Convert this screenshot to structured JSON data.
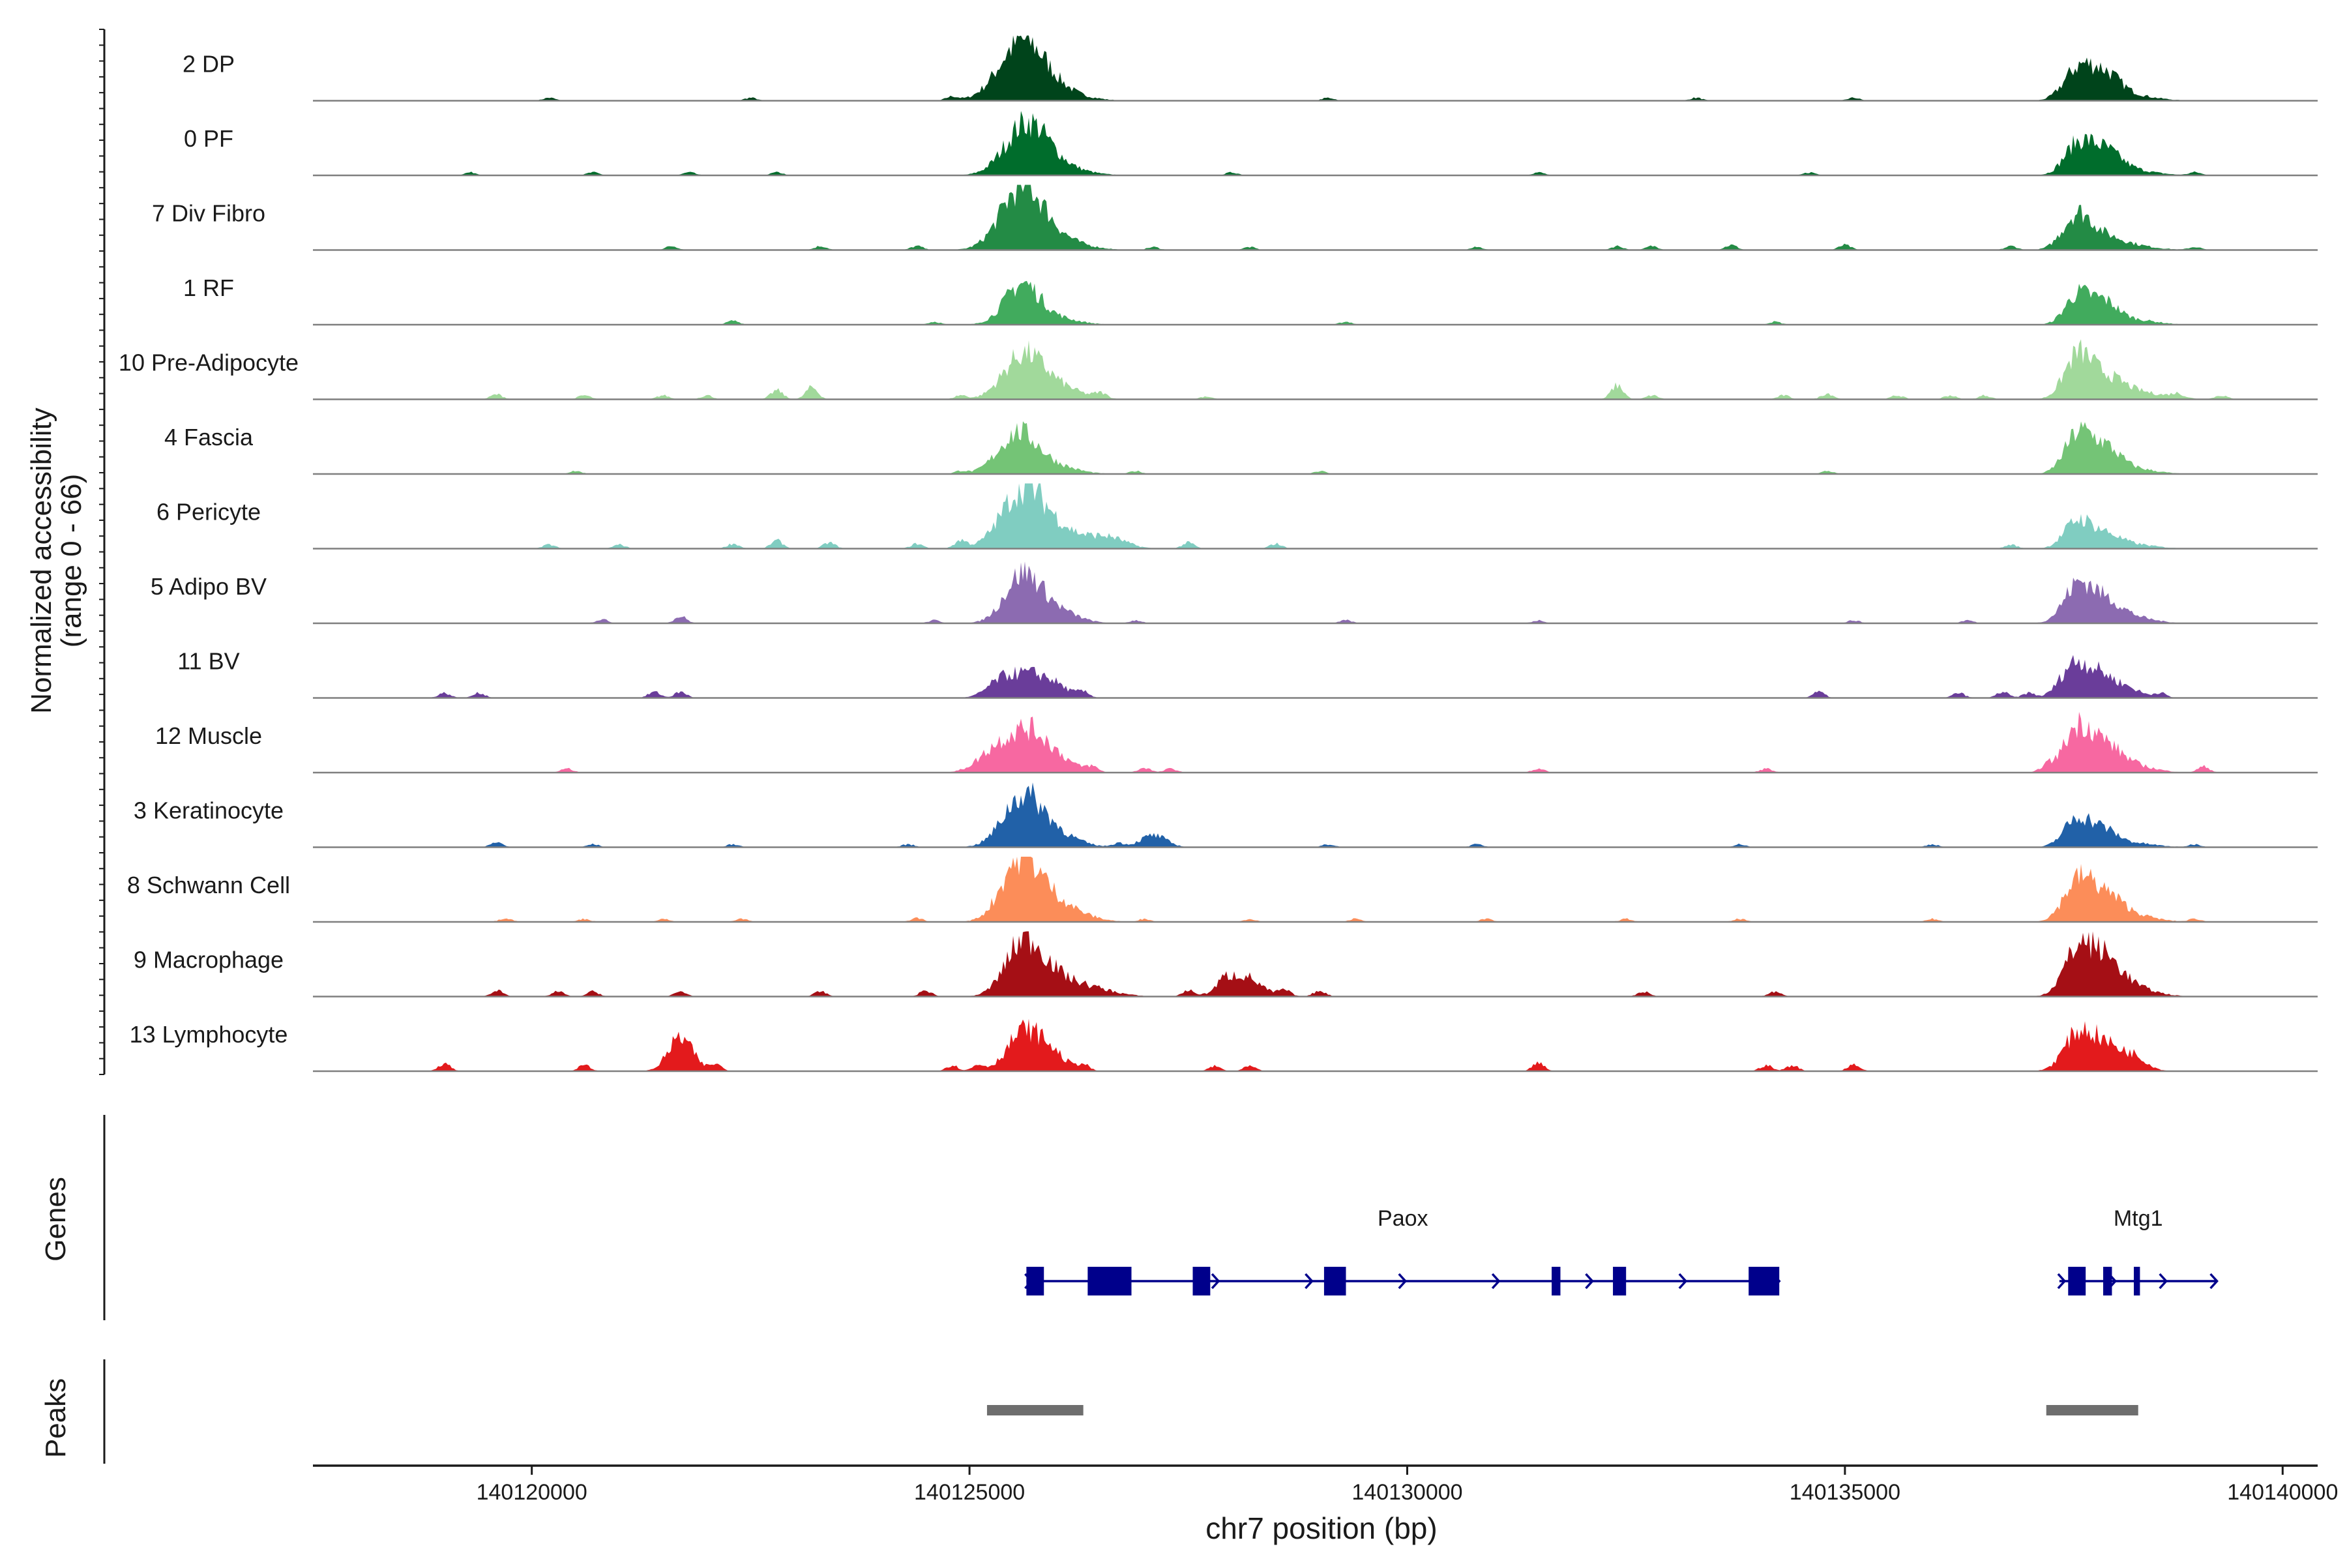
{
  "chart_data": {
    "type": "area",
    "chromosome": "chr7",
    "xlabel": "chr7 position (bp)",
    "ylabel": "Normalized accessibility",
    "ylabel_range": "(range 0 - 66)",
    "xlim": [
      140117500,
      140140400
    ],
    "ylim": [
      0,
      66
    ],
    "x_ticks": [
      140120000,
      140125000,
      140130000,
      140135000,
      140140000
    ],
    "x_tick_labels": [
      "140120000",
      "140125000",
      "140130000",
      "140135000",
      "140140000"
    ],
    "tracks": [
      {
        "name": "2 DP",
        "color": "#00441b",
        "peaks": [
          [
            140125600,
            260,
            58
          ],
          [
            140126000,
            300,
            8
          ],
          [
            140137650,
            160,
            28
          ],
          [
            140137950,
            180,
            24
          ],
          [
            140138200,
            300,
            6
          ]
        ],
        "minor": [
          [
            140120200,
            3
          ],
          [
            140122500,
            3
          ],
          [
            140124800,
            4
          ],
          [
            140129100,
            3
          ],
          [
            140133300,
            3
          ],
          [
            140135100,
            3
          ]
        ]
      },
      {
        "name": "0 PF",
        "color": "#006d2c",
        "peaks": [
          [
            140125650,
            240,
            50
          ],
          [
            140126000,
            300,
            8
          ],
          [
            140137650,
            150,
            28
          ],
          [
            140137950,
            180,
            22
          ],
          [
            140138200,
            300,
            6
          ]
        ],
        "minor": [
          [
            140119300,
            3
          ],
          [
            140120700,
            3
          ],
          [
            140121800,
            3
          ],
          [
            140122800,
            3
          ],
          [
            140128000,
            3
          ],
          [
            140131500,
            3
          ],
          [
            140134600,
            3
          ],
          [
            140139000,
            3
          ]
        ]
      },
      {
        "name": "7 Div Fibro",
        "color": "#238b45",
        "peaks": [
          [
            140125600,
            240,
            62
          ],
          [
            140126000,
            300,
            10
          ],
          [
            140137650,
            160,
            34
          ],
          [
            140137950,
            200,
            10
          ],
          [
            140138200,
            300,
            5
          ]
        ],
        "minor": [
          [
            140121600,
            4
          ],
          [
            140123300,
            4
          ],
          [
            140124400,
            4
          ],
          [
            140127100,
            3
          ],
          [
            140128200,
            3
          ],
          [
            140130800,
            3
          ],
          [
            140132400,
            4
          ],
          [
            140132800,
            4
          ],
          [
            140133700,
            5
          ],
          [
            140135000,
            5
          ],
          [
            140136900,
            4
          ],
          [
            140139000,
            3
          ]
        ]
      },
      {
        "name": "1 RF",
        "color": "#41ab5d",
        "peaks": [
          [
            140125600,
            200,
            40
          ],
          [
            140126000,
            250,
            6
          ],
          [
            140137650,
            140,
            28
          ],
          [
            140137950,
            160,
            22
          ],
          [
            140138300,
            250,
            5
          ]
        ],
        "minor": [
          [
            140122300,
            4
          ],
          [
            140124600,
            3
          ],
          [
            140129300,
            3
          ],
          [
            140134200,
            3
          ]
        ]
      },
      {
        "name": "10 Pre-Adipocyte",
        "color": "#a1d99b",
        "peaks": [
          [
            140125600,
            220,
            40
          ],
          [
            140125950,
            280,
            14
          ],
          [
            140137650,
            150,
            38
          ],
          [
            140137950,
            220,
            22
          ],
          [
            140138400,
            300,
            6
          ]
        ],
        "minor": [
          [
            140119600,
            5
          ],
          [
            140120600,
            4
          ],
          [
            140121500,
            4
          ],
          [
            140122000,
            4
          ],
          [
            140122800,
            9
          ],
          [
            140123200,
            12
          ],
          [
            140124900,
            4
          ],
          [
            140126500,
            5
          ],
          [
            140127700,
            3
          ],
          [
            140132400,
            14
          ],
          [
            140132800,
            4
          ],
          [
            140134300,
            4
          ],
          [
            140134800,
            6
          ],
          [
            140135600,
            4
          ],
          [
            140136200,
            4
          ],
          [
            140136600,
            4
          ],
          [
            140138800,
            4
          ],
          [
            140139300,
            4
          ]
        ]
      },
      {
        "name": "4 Fascia",
        "color": "#74c476",
        "peaks": [
          [
            140125550,
            220,
            40
          ],
          [
            140125950,
            260,
            8
          ],
          [
            140137650,
            150,
            36
          ],
          [
            140137950,
            180,
            26
          ],
          [
            140138300,
            250,
            5
          ]
        ],
        "minor": [
          [
            140120500,
            3
          ],
          [
            140124900,
            3
          ],
          [
            140126900,
            3
          ],
          [
            140129000,
            3
          ],
          [
            140134800,
            3
          ]
        ]
      },
      {
        "name": "6 Pericyte",
        "color": "#80cdc1",
        "peaks": [
          [
            140125600,
            240,
            55
          ],
          [
            140126000,
            300,
            18
          ],
          [
            140126600,
            200,
            10
          ],
          [
            140137650,
            150,
            26
          ],
          [
            140137950,
            180,
            14
          ],
          [
            140138300,
            250,
            4
          ]
        ],
        "minor": [
          [
            140120200,
            4
          ],
          [
            140121000,
            4
          ],
          [
            140122300,
            5
          ],
          [
            140122800,
            8
          ],
          [
            140123400,
            6
          ],
          [
            140124400,
            5
          ],
          [
            140124900,
            8
          ],
          [
            140127500,
            6
          ],
          [
            140128500,
            5
          ],
          [
            140136900,
            4
          ]
        ]
      },
      {
        "name": "5 Adipo BV",
        "color": "#8c6bb1",
        "peaks": [
          [
            140125600,
            200,
            46
          ],
          [
            140125950,
            250,
            14
          ],
          [
            140137650,
            160,
            34
          ],
          [
            140137950,
            200,
            22
          ],
          [
            140138300,
            250,
            5
          ]
        ],
        "minor": [
          [
            140121700,
            7
          ],
          [
            140120800,
            4
          ],
          [
            140124600,
            3
          ],
          [
            140126900,
            3
          ],
          [
            140129300,
            3
          ],
          [
            140131500,
            3
          ],
          [
            140135100,
            3
          ],
          [
            140136400,
            3
          ]
        ]
      },
      {
        "name": "11 BV",
        "color": "#6a3d9a",
        "peaks": [
          [
            140125350,
            160,
            14
          ],
          [
            140125650,
            200,
            20
          ],
          [
            140125950,
            180,
            12
          ],
          [
            140137600,
            150,
            30
          ],
          [
            140137900,
            180,
            24
          ],
          [
            140138250,
            150,
            8
          ]
        ],
        "minor": [
          [
            140119000,
            5
          ],
          [
            140119400,
            5
          ],
          [
            140121400,
            6
          ],
          [
            140121700,
            6
          ],
          [
            140126300,
            5
          ],
          [
            140134700,
            6
          ],
          [
            140136300,
            5
          ],
          [
            140136800,
            6
          ],
          [
            140137100,
            5
          ],
          [
            140138600,
            5
          ]
        ]
      },
      {
        "name": "12 Muscle",
        "color": "#f768a1",
        "peaks": [
          [
            140125300,
            200,
            22
          ],
          [
            140125650,
            200,
            34
          ],
          [
            140125950,
            220,
            16
          ],
          [
            140137650,
            160,
            40
          ],
          [
            140137950,
            200,
            26
          ],
          [
            140138300,
            250,
            6
          ]
        ],
        "minor": [
          [
            140120400,
            4
          ],
          [
            140126400,
            5
          ],
          [
            140127000,
            5
          ],
          [
            140127300,
            4
          ],
          [
            140131500,
            4
          ],
          [
            140134100,
            4
          ],
          [
            140137300,
            6
          ],
          [
            140139100,
            6
          ]
        ]
      },
      {
        "name": "3 Keratinocyte",
        "color": "#2161a8",
        "peaks": [
          [
            140125600,
            220,
            48
          ],
          [
            140125950,
            260,
            14
          ],
          [
            140127100,
            150,
            12
          ],
          [
            140137650,
            150,
            28
          ],
          [
            140137950,
            160,
            16
          ],
          [
            140138300,
            250,
            4
          ]
        ],
        "minor": [
          [
            140119600,
            5
          ],
          [
            140120700,
            3
          ],
          [
            140122300,
            3
          ],
          [
            140124300,
            3
          ],
          [
            140126700,
            4
          ],
          [
            140129100,
            3
          ],
          [
            140130800,
            3
          ],
          [
            140133800,
            3
          ],
          [
            140136000,
            3
          ],
          [
            140139000,
            3
          ]
        ]
      },
      {
        "name": "8 Schwann Cell",
        "color": "#fc8d59",
        "peaks": [
          [
            140125550,
            200,
            48
          ],
          [
            140125800,
            260,
            28
          ],
          [
            140126200,
            250,
            6
          ],
          [
            140137650,
            160,
            36
          ],
          [
            140137950,
            200,
            26
          ],
          [
            140138300,
            250,
            6
          ]
        ],
        "minor": [
          [
            140119700,
            4
          ],
          [
            140120600,
            3
          ],
          [
            140121500,
            3
          ],
          [
            140122400,
            3
          ],
          [
            140124400,
            4
          ],
          [
            140127000,
            3
          ],
          [
            140128200,
            3
          ],
          [
            140129400,
            3
          ],
          [
            140130900,
            3
          ],
          [
            140132500,
            3
          ],
          [
            140133800,
            3
          ],
          [
            140136000,
            3
          ],
          [
            140139000,
            3
          ]
        ]
      },
      {
        "name": "9 Macrophage",
        "color": "#a50f15",
        "peaks": [
          [
            140125600,
            200,
            46
          ],
          [
            140125850,
            240,
            20
          ],
          [
            140126300,
            300,
            10
          ],
          [
            140128100,
            200,
            22
          ],
          [
            140137650,
            160,
            40
          ],
          [
            140137950,
            200,
            36
          ],
          [
            140138300,
            250,
            8
          ]
        ],
        "minor": [
          [
            140119600,
            6
          ],
          [
            140120300,
            5
          ],
          [
            140120700,
            5
          ],
          [
            140121700,
            5
          ],
          [
            140123300,
            5
          ],
          [
            140124500,
            6
          ],
          [
            140127500,
            6
          ],
          [
            140127900,
            6
          ],
          [
            140128600,
            6
          ],
          [
            140129000,
            6
          ],
          [
            140132700,
            5
          ],
          [
            140134200,
            5
          ]
        ]
      },
      {
        "name": "13 Lymphocyte",
        "color": "#e31a1c",
        "peaks": [
          [
            140121700,
            140,
            34
          ],
          [
            140125600,
            180,
            36
          ],
          [
            140125900,
            180,
            20
          ],
          [
            140137650,
            160,
            34
          ],
          [
            140137950,
            180,
            26
          ],
          [
            140138300,
            150,
            14
          ]
        ],
        "minor": [
          [
            140119000,
            8
          ],
          [
            140120600,
            6
          ],
          [
            140122100,
            7
          ],
          [
            140124800,
            6
          ],
          [
            140125100,
            6
          ],
          [
            140126300,
            6
          ],
          [
            140127800,
            5
          ],
          [
            140128200,
            5
          ],
          [
            140131500,
            8
          ],
          [
            140134100,
            6
          ],
          [
            140134400,
            6
          ],
          [
            140135100,
            7
          ]
        ]
      }
    ],
    "genes_label": "Genes",
    "genes": [
      {
        "name": "Paox",
        "start": 140125650,
        "end": 140134250,
        "strand": "+",
        "exons": [
          [
            140125650,
            140125850
          ],
          [
            140126350,
            140126850
          ],
          [
            140127550,
            140127750
          ],
          [
            140129050,
            140129300
          ],
          [
            140131650,
            140131750
          ],
          [
            140132350,
            140132500
          ],
          [
            140133900,
            140134250
          ]
        ]
      },
      {
        "name": "Mtg1",
        "start": 140137450,
        "end": 140139250,
        "strand": "+",
        "exons": [
          [
            140137550,
            140137750
          ],
          [
            140137950,
            140138050
          ],
          [
            140138300,
            140138370
          ]
        ]
      }
    ],
    "peaks_label": "Peaks",
    "peak_regions": [
      [
        140125200,
        140126300
      ],
      [
        140137300,
        140138350
      ]
    ]
  }
}
